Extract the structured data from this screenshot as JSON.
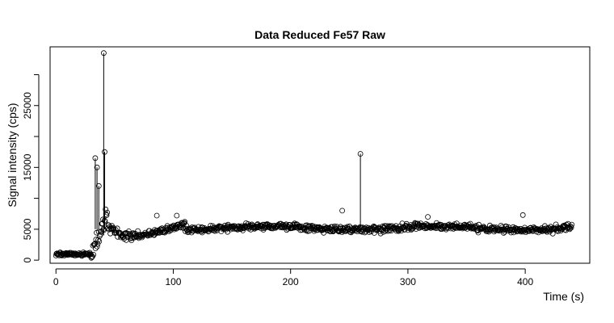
{
  "chart_data": {
    "type": "scatter",
    "title": "Data Reduced Fe57 Raw",
    "xlabel": "Time (s)",
    "ylabel": "Signal intensity (cps)",
    "xlim": [
      -5,
      455
    ],
    "ylim": [
      -500,
      34500
    ],
    "x_ticks": [
      0,
      100,
      200,
      300,
      400
    ],
    "y_ticks": [
      0,
      5000,
      15000,
      25000
    ],
    "y_minor_ticks": [
      10000,
      20000,
      30000
    ],
    "marker": "open-circle",
    "point_color": "#000000",
    "grid": false,
    "legend": "none",
    "segments": [
      {
        "t": 33.5,
        "y_from": 5000,
        "y_to": 16500,
        "point": 16500
      },
      {
        "t": 35,
        "y_from": 5000,
        "y_to": 15000,
        "point": 15000
      },
      {
        "t": 36.5,
        "y_from": 5000,
        "y_to": 12000,
        "point": 12000
      },
      {
        "t": 40.7,
        "y_from": 4000,
        "y_to": 33500,
        "point": 33500
      },
      {
        "t": 41.5,
        "y_from": 5000,
        "y_to": 17500,
        "point": 17500
      },
      {
        "t": 259.5,
        "y_from": 4600,
        "y_to": 17200,
        "point": 17200
      }
    ],
    "series_profile": {
      "t_start": 0,
      "t_end": 440,
      "step": 0.45,
      "baseline_until": 30,
      "baseline_level": 1000,
      "rise_until": 44,
      "dip_until": 70,
      "dip_level": 3800,
      "plateau_level": 5200,
      "noise": 900
    }
  }
}
